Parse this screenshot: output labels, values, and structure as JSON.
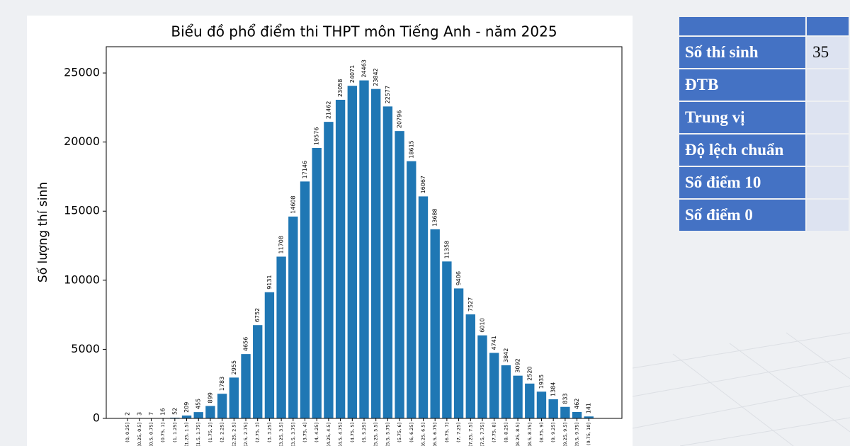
{
  "chart_data": {
    "type": "bar",
    "title": "Biểu đồ phổ điểm thi THPT môn Tiếng Anh - năm 2025",
    "ylabel": "Số lượng thí sinh",
    "categories": [
      "(0, 0.25]",
      "(0.25, 0.5]",
      "(0.5, 0.75]",
      "(0.75, 1]",
      "(1, 1.25]",
      "(1.25, 1.5]",
      "(1.5, 1.75]",
      "(1.75, 2]",
      "(2, 2.25]",
      "(2.25, 2.5]",
      "(2.5, 2.75]",
      "(2.75, 3]",
      "(3, 3.25]",
      "(3.25, 3.5]",
      "(3.5, 3.75]",
      "(3.75, 4]",
      "(4, 4.25]",
      "(4.25, 4.5]",
      "(4.5, 4.75]",
      "(4.75, 5]",
      "(5, 5.25]",
      "(5.25, 5.5]",
      "(5.5, 5.75]",
      "(5.75, 6]",
      "(6, 6.25]",
      "(6.25, 6.5]",
      "(6.5, 6.75]",
      "(6.75, 7]",
      "(7, 7.25]",
      "(7.25, 7.5]",
      "(7.5, 7.75]",
      "(7.75, 8]",
      "(8, 8.25]",
      "(8.25, 8.5]",
      "(8.5, 8.75]",
      "(8.75, 9]",
      "(9, 9.25]",
      "(9.25, 9.5]",
      "(9.5, 9.75]",
      "(9.75, 10]"
    ],
    "values": [
      2,
      3,
      7,
      16,
      52,
      209,
      455,
      899,
      1783,
      2955,
      4656,
      6752,
      9131,
      11708,
      14608,
      17146,
      19576,
      21462,
      23058,
      24071,
      24463,
      23842,
      22577,
      20796,
      18615,
      16067,
      13688,
      11358,
      9406,
      7527,
      6010,
      4741,
      3842,
      3092,
      2520,
      1935,
      1384,
      833,
      462,
      141
    ],
    "color": "#1f77b4",
    "ylim": [
      0,
      26900
    ],
    "yticks": [
      0,
      5000,
      10000,
      15000,
      20000,
      25000
    ]
  },
  "table": {
    "rows": [
      [
        "Số thí sinh",
        "35"
      ],
      [
        "ĐTB"
      ],
      [
        "Trung vị"
      ],
      [
        "Độ lệch chuẩn"
      ],
      [
        "Số điểm 10"
      ],
      [
        "Số điểm 0"
      ]
    ]
  }
}
